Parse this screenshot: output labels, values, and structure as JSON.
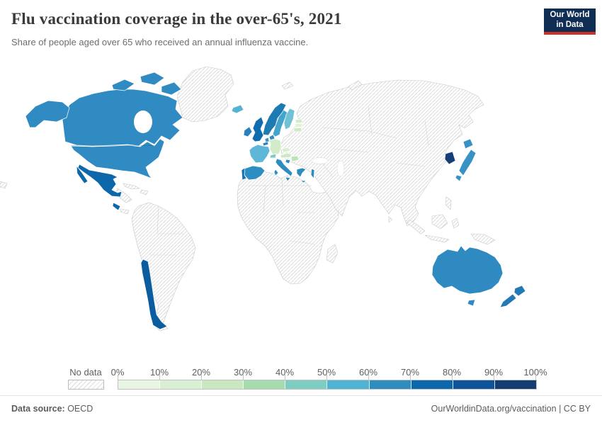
{
  "header": {
    "title": "Flu vaccination coverage in the over-65's, 2021",
    "subtitle": "Share of people aged over 65 who received an annual influenza vaccine.",
    "logo": {
      "line1": "Our World",
      "line2": "in Data",
      "bg": "#102d54",
      "accent": "#cc3129"
    }
  },
  "legend": {
    "no_data_label": "No data",
    "ticks": [
      "0%",
      "10%",
      "20%",
      "30%",
      "40%",
      "50%",
      "60%",
      "70%",
      "80%",
      "90%",
      "100%"
    ],
    "colors": [
      "#e8f5e3",
      "#d9efd3",
      "#c9e8bf",
      "#a5dbae",
      "#7ecdc3",
      "#4fb3d4",
      "#2d8dbf",
      "#0c68ac",
      "#0f5499",
      "#133d73"
    ]
  },
  "map": {
    "hatch_line_color": "#dcdcdc",
    "no_data_border_color": "#c9c9c9",
    "country_border_color": "#ffffff",
    "regions": {
      "canada": {
        "name": "Canada",
        "color": "#2f8bc1"
      },
      "usa": {
        "name": "United States",
        "color": "#2f8bc1"
      },
      "mexico": {
        "name": "Mexico",
        "color": "#0d68ab"
      },
      "costa_rica": {
        "name": "Costa Rica",
        "color": "#0d68ab"
      },
      "chile": {
        "name": "Chile",
        "color": "#0b5d9f"
      },
      "iceland": {
        "name": "Iceland",
        "color": "#54b5d3"
      },
      "norway": {
        "name": "Norway",
        "color": "#1e7ab3"
      },
      "sweden": {
        "name": "Sweden",
        "color": "#45a4cc"
      },
      "finland": {
        "name": "Finland",
        "color": "#71c1d5"
      },
      "denmark": {
        "name": "Denmark",
        "color": "#2f8cc0"
      },
      "united_kingdom": {
        "name": "United Kingdom",
        "color": "#0f6cae"
      },
      "ireland": {
        "name": "Ireland",
        "color": "#2a80b9"
      },
      "netherlands": {
        "name": "Netherlands",
        "color": "#3c92c5"
      },
      "belgium": {
        "name": "Belgium",
        "color": "#2b86bd"
      },
      "germany": {
        "name": "Germany",
        "color": "#d2ecca"
      },
      "france": {
        "name": "France",
        "color": "#5fb7d8"
      },
      "switzerland": {
        "name": "Switzerland",
        "color": "#7bccc4"
      },
      "austria": {
        "name": "Austria",
        "color": "#cdeac3"
      },
      "czechia": {
        "name": "Czechia",
        "color": "#d8efcf"
      },
      "hungary": {
        "name": "Hungary",
        "color": "#bce4b6"
      },
      "slovenia": {
        "name": "Slovenia",
        "color": "#2b8cbe"
      },
      "italy": {
        "name": "Italy",
        "color": "#2d8dbf"
      },
      "spain": {
        "name": "Spain",
        "color": "#2c8ec2"
      },
      "portugal": {
        "name": "Portugal",
        "color": "#1873ae"
      },
      "greece": {
        "name": "Greece",
        "color": "#2d8dbf"
      },
      "estonia": {
        "name": "Estonia",
        "color": "#d2ecca"
      },
      "latvia": {
        "name": "Latvia",
        "color": "#e0f3d8"
      },
      "lithuania": {
        "name": "Lithuania",
        "color": "#cfeac6"
      },
      "israel": {
        "name": "Israel",
        "color": "#2d8dbf"
      },
      "south_korea": {
        "name": "South Korea",
        "color": "#153f76"
      },
      "japan": {
        "name": "Japan",
        "color": "#3892c5"
      },
      "australia": {
        "name": "Australia",
        "color": "#2e8ac0"
      },
      "new_zealand": {
        "name": "New Zealand",
        "color": "#2279b4"
      }
    }
  },
  "chart_data": {
    "type": "heatmap",
    "subtype": "choropleth-world-map",
    "title": "Flu vaccination coverage in the over-65's, 2021",
    "subtitle": "Share of people aged over 65 who received an annual influenza vaccine.",
    "unit": "%",
    "scale_ticks": [
      "0%",
      "10%",
      "20%",
      "30%",
      "40%",
      "50%",
      "60%",
      "70%",
      "80%",
      "90%",
      "100%"
    ],
    "no_data_label": "No data",
    "legend_position": "bottom",
    "regions": [
      {
        "name": "Canada",
        "range": "60-70%"
      },
      {
        "name": "United States",
        "range": "60-70%"
      },
      {
        "name": "Mexico",
        "range": "70-80%"
      },
      {
        "name": "Costa Rica",
        "range": "70-80%"
      },
      {
        "name": "Chile",
        "range": "70-80%"
      },
      {
        "name": "Iceland",
        "range": "50-60%"
      },
      {
        "name": "Norway",
        "range": "60-70%"
      },
      {
        "name": "Sweden",
        "range": "50-60%"
      },
      {
        "name": "Finland",
        "range": "50-60%"
      },
      {
        "name": "Denmark",
        "range": "60-70%"
      },
      {
        "name": "United Kingdom",
        "range": "70-80%"
      },
      {
        "name": "Ireland",
        "range": "60-70%"
      },
      {
        "name": "Netherlands",
        "range": "60-70%"
      },
      {
        "name": "Belgium",
        "range": "60-70%"
      },
      {
        "name": "Germany",
        "range": "20-30%"
      },
      {
        "name": "France",
        "range": "50-60%"
      },
      {
        "name": "Switzerland",
        "range": "40-50%"
      },
      {
        "name": "Austria",
        "range": "20-30%"
      },
      {
        "name": "Czechia",
        "range": "10-20%"
      },
      {
        "name": "Hungary",
        "range": "30-40%"
      },
      {
        "name": "Slovenia",
        "range": "60-70%"
      },
      {
        "name": "Italy",
        "range": "60-70%"
      },
      {
        "name": "Spain",
        "range": "60-70%"
      },
      {
        "name": "Portugal",
        "range": "70-80%"
      },
      {
        "name": "Greece",
        "range": "60-70%"
      },
      {
        "name": "Estonia",
        "range": "10-20%"
      },
      {
        "name": "Latvia",
        "range": "0-10%"
      },
      {
        "name": "Lithuania",
        "range": "10-20%"
      },
      {
        "name": "Israel",
        "range": "60-70%"
      },
      {
        "name": "South Korea",
        "range": "90-100%"
      },
      {
        "name": "Japan",
        "range": "60-70%"
      },
      {
        "name": "Australia",
        "range": "60-70%"
      },
      {
        "name": "New Zealand",
        "range": "60-70%"
      },
      {
        "name": "All other countries",
        "range": "No data"
      }
    ]
  },
  "footer": {
    "source_label": "Data source:",
    "source_value": " OECD",
    "link": "OurWorldinData.org/vaccination",
    "divider": " | ",
    "license": "CC BY"
  }
}
